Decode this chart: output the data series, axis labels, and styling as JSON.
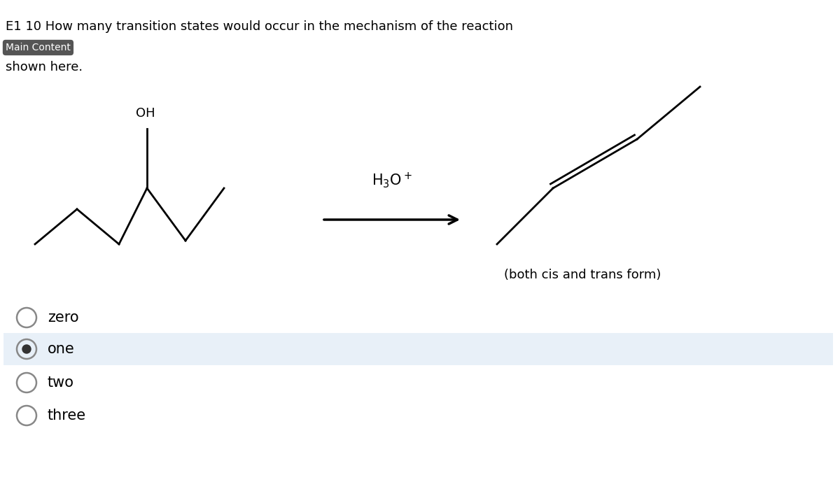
{
  "title_line1": "E1 10 How many transition states would occur in the mechanism of the reaction",
  "title_line2": "shown here.",
  "main_content_label": "Main Content",
  "bg_color": "#ffffff",
  "options": [
    "zero",
    "one",
    "two",
    "three"
  ],
  "selected_option": 1,
  "selected_bg": "#e8f0f8",
  "reagent": "H$_3$O$^+$",
  "note": "(both cis and trans form)"
}
